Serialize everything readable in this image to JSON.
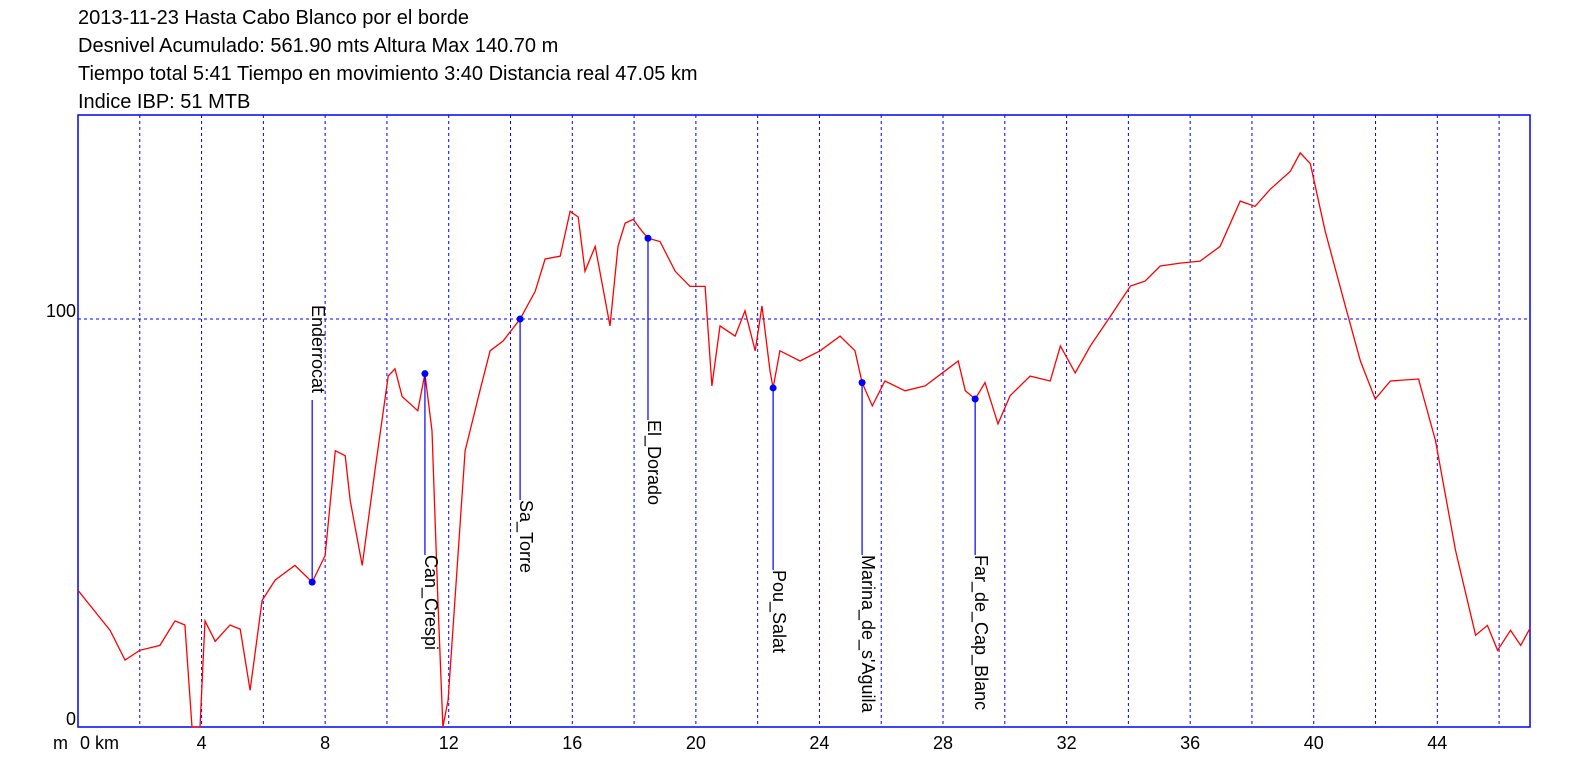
{
  "chart_data": {
    "type": "line",
    "title": "2013-11-23 Hasta Cabo Blanco por el borde",
    "subtitles": [
      "Desnivel Acumulado: 561.90 mts  Altura Max 140.70 m",
      "Tiempo total 5:41 Tiempo en movimiento 3:40 Distancia real 47.05 km",
      "Indice IBP: 51 MTB"
    ],
    "y_label": "m",
    "xlim": [
      0,
      47
    ],
    "ylim": [
      0,
      150
    ],
    "xticks": [
      {
        "value": 0,
        "label": "0 km"
      },
      4,
      8,
      12,
      16,
      20,
      24,
      28,
      32,
      36,
      40,
      44
    ],
    "xgrid": [
      2,
      6,
      10,
      14,
      18,
      22,
      26,
      30,
      34,
      38,
      42,
      46
    ],
    "yticks": [
      0,
      100
    ],
    "grid": true,
    "grid_color": "#0000ff",
    "frame_color": "#0000ff",
    "series": [
      {
        "color": "#ff0000",
        "x": [
          0,
          0.39,
          1.04,
          1.52,
          2.0,
          2.65,
          3.14,
          3.46,
          3.69,
          3.95,
          4.11,
          4.44,
          4.92,
          5.25,
          5.57,
          5.96,
          6.38,
          7.02,
          7.58,
          8.0,
          8.33,
          8.65,
          8.81,
          9.2,
          9.61,
          10.04,
          10.26,
          10.49,
          11.0,
          11.23,
          11.46,
          11.65,
          11.81,
          11.98,
          12.2,
          12.53,
          13.01,
          13.34,
          13.76,
          14.31,
          14.8,
          15.12,
          15.61,
          15.93,
          16.19,
          16.41,
          16.74,
          17.22,
          17.48,
          17.71,
          17.97,
          18.26,
          18.45,
          18.84,
          19.33,
          19.81,
          20.3,
          20.52,
          20.78,
          21.27,
          21.59,
          21.92,
          22.14,
          22.4,
          22.5,
          22.72,
          23.37,
          24.02,
          24.67,
          25.15,
          25.38,
          25.71,
          26.12,
          26.77,
          27.42,
          28.07,
          28.49,
          28.72,
          29.04,
          29.36,
          29.78,
          30.17,
          30.82,
          31.47,
          31.8,
          32.28,
          32.77,
          33.42,
          34.07,
          34.54,
          35.03,
          35.68,
          36.32,
          36.97,
          37.62,
          38.1,
          38.59,
          39.24,
          39.56,
          39.89,
          40.37,
          41.02,
          41.51,
          41.99,
          42.48,
          43.39,
          43.94,
          44.59,
          45.24,
          45.62,
          45.95,
          46.37,
          46.7,
          47.0
        ],
        "values": [
          33.5,
          29.8,
          23.7,
          16.4,
          18.8,
          20,
          26,
          25,
          0,
          0,
          26,
          21,
          25,
          24,
          9,
          31,
          36,
          39.6,
          35.5,
          42,
          67.7,
          66.5,
          55.5,
          39.6,
          62.8,
          86,
          87.8,
          81,
          77.5,
          86.6,
          72.6,
          31,
          0,
          6.6,
          31,
          67.7,
          82.4,
          92.2,
          94.6,
          100,
          106.8,
          114.7,
          115.4,
          126.4,
          125,
          111.7,
          117.8,
          98.3,
          117.8,
          123.5,
          124.4,
          121.5,
          119.8,
          119,
          111.7,
          108,
          108,
          83.6,
          98.3,
          95.8,
          102,
          92.2,
          103.2,
          87.3,
          83.1,
          92.2,
          89.7,
          92.2,
          95.8,
          92.2,
          84.4,
          78.7,
          84.8,
          82.4,
          83.6,
          87.3,
          89.7,
          82.4,
          80.4,
          84.4,
          74.3,
          81.2,
          86,
          84.8,
          93.4,
          86.8,
          93.4,
          100.7,
          108.1,
          109.3,
          113,
          113.7,
          114.2,
          117.8,
          128.9,
          127.6,
          131.8,
          136.2,
          140.7,
          138.1,
          121.5,
          103.2,
          89.7,
          80.4,
          84.8,
          85.3,
          70.2,
          43.3,
          22.5,
          24.9,
          18.8,
          23.7,
          20,
          24.2
        ]
      }
    ],
    "waypoints": [
      {
        "name": "Enderrocat",
        "x": 7.58,
        "elevation": 35.5
      },
      {
        "name": "Can_Crespi",
        "x": 11.23,
        "elevation": 86.6
      },
      {
        "name": "Sa_Torre",
        "x": 14.31,
        "elevation": 100
      },
      {
        "name": "El_Dorado",
        "x": 18.45,
        "elevation": 119.8
      },
      {
        "name": "Pou_Salat",
        "x": 22.5,
        "elevation": 83.1
      },
      {
        "name": "Marina_de_s'Aguila",
        "x": 25.38,
        "elevation": 84.4
      },
      {
        "name": "Far_de_Cap_Blanc",
        "x": 29.04,
        "elevation": 80.4
      }
    ],
    "waypoint_color": "#0000ff"
  }
}
